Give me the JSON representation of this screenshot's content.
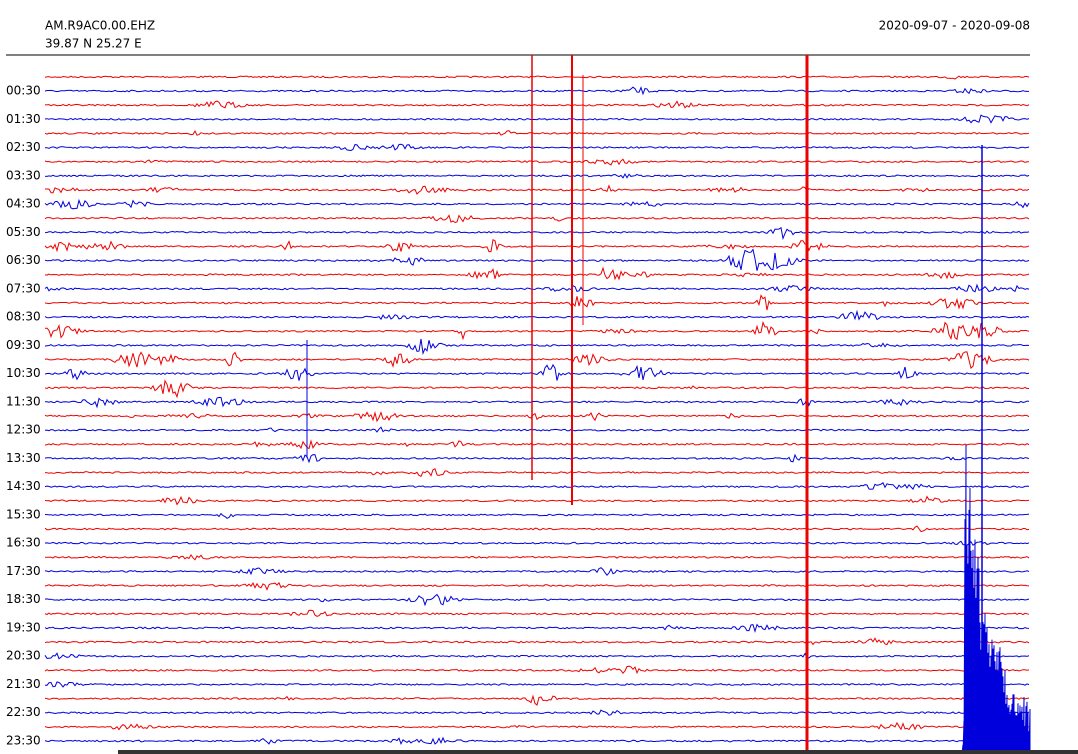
{
  "header": {
    "station": "AM.R9AC0.00.EHZ",
    "coords": "39.87 N 25.27 E",
    "date_range": "2020-09-07 - 2020-09-08"
  },
  "rows": {
    "labels": [
      "00:30",
      "01:30",
      "02:30",
      "03:30",
      "04:30",
      "05:30",
      "06:30",
      "07:30",
      "08:30",
      "09:30",
      "10:30",
      "11:30",
      "12:30",
      "13:30",
      "14:30",
      "15:30",
      "16:30",
      "17:30",
      "18:30",
      "19:30",
      "20:30",
      "21:30",
      "22:30",
      "23:30"
    ]
  }
}
